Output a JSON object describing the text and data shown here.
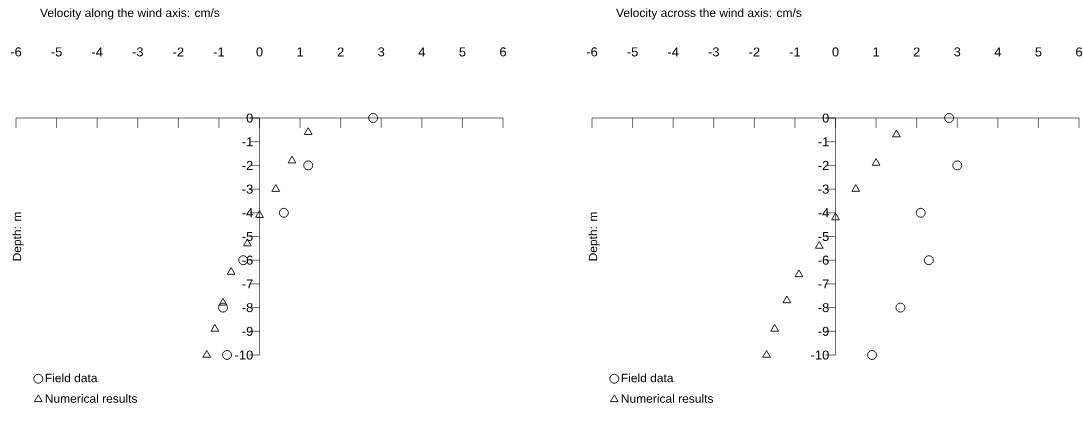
{
  "chart_data": [
    {
      "type": "scatter",
      "title": "Velocity along the wind axis: cm/s",
      "ylabel": "Depth: m",
      "xlim": [
        -6,
        6
      ],
      "ylim": [
        -10,
        0
      ],
      "xticks": [
        -6,
        -5,
        -4,
        -3,
        -2,
        -1,
        0,
        1,
        2,
        3,
        4,
        5,
        6
      ],
      "yticks": [
        -10,
        -9,
        -8,
        -7,
        -6,
        -5,
        -4,
        -3,
        -2,
        -1,
        0
      ],
      "legend": "bottom left",
      "series": [
        {
          "name": "Field data",
          "color": "#000000",
          "marker": "circle",
          "x": [
            2.8,
            1.2,
            0.6,
            -0.4,
            -0.9,
            -0.8
          ],
          "values": [
            0,
            -2,
            -4,
            -6,
            -8,
            -10
          ]
        },
        {
          "name": "Numerical results",
          "color": "#000000",
          "marker": "triangle",
          "x": [
            1.2,
            0.8,
            0.4,
            0.0,
            -0.3,
            -0.7,
            -0.9,
            -1.1,
            -1.3
          ],
          "values": [
            -0.6,
            -1.8,
            -3.0,
            -4.1,
            -5.3,
            -6.5,
            -7.8,
            -8.9,
            -10.0
          ]
        }
      ]
    },
    {
      "type": "scatter",
      "title": "Velocity across the wind axis: cm/s",
      "ylabel": "Depth: m",
      "xlim": [
        -6,
        6
      ],
      "ylim": [
        -10,
        0
      ],
      "xticks": [
        -6,
        -5,
        -4,
        -3,
        -2,
        -1,
        0,
        1,
        2,
        3,
        4,
        5,
        6
      ],
      "yticks": [
        -10,
        -9,
        -8,
        -7,
        -6,
        -5,
        -4,
        -3,
        -2,
        -1,
        0
      ],
      "legend": "bottom left",
      "series": [
        {
          "name": "Field data",
          "color": "#000000",
          "marker": "circle",
          "x": [
            2.8,
            3.0,
            2.1,
            2.3,
            1.6,
            0.9
          ],
          "values": [
            0,
            -2,
            -4,
            -6,
            -8,
            -10
          ]
        },
        {
          "name": "Numerical results",
          "color": "#000000",
          "marker": "triangle",
          "x": [
            1.5,
            1.0,
            0.5,
            0.0,
            -0.4,
            -0.9,
            -1.2,
            -1.5,
            -1.7
          ],
          "values": [
            -0.7,
            -1.9,
            -3.0,
            -4.2,
            -5.4,
            -6.6,
            -7.7,
            -8.9,
            -10.0
          ]
        }
      ]
    }
  ]
}
